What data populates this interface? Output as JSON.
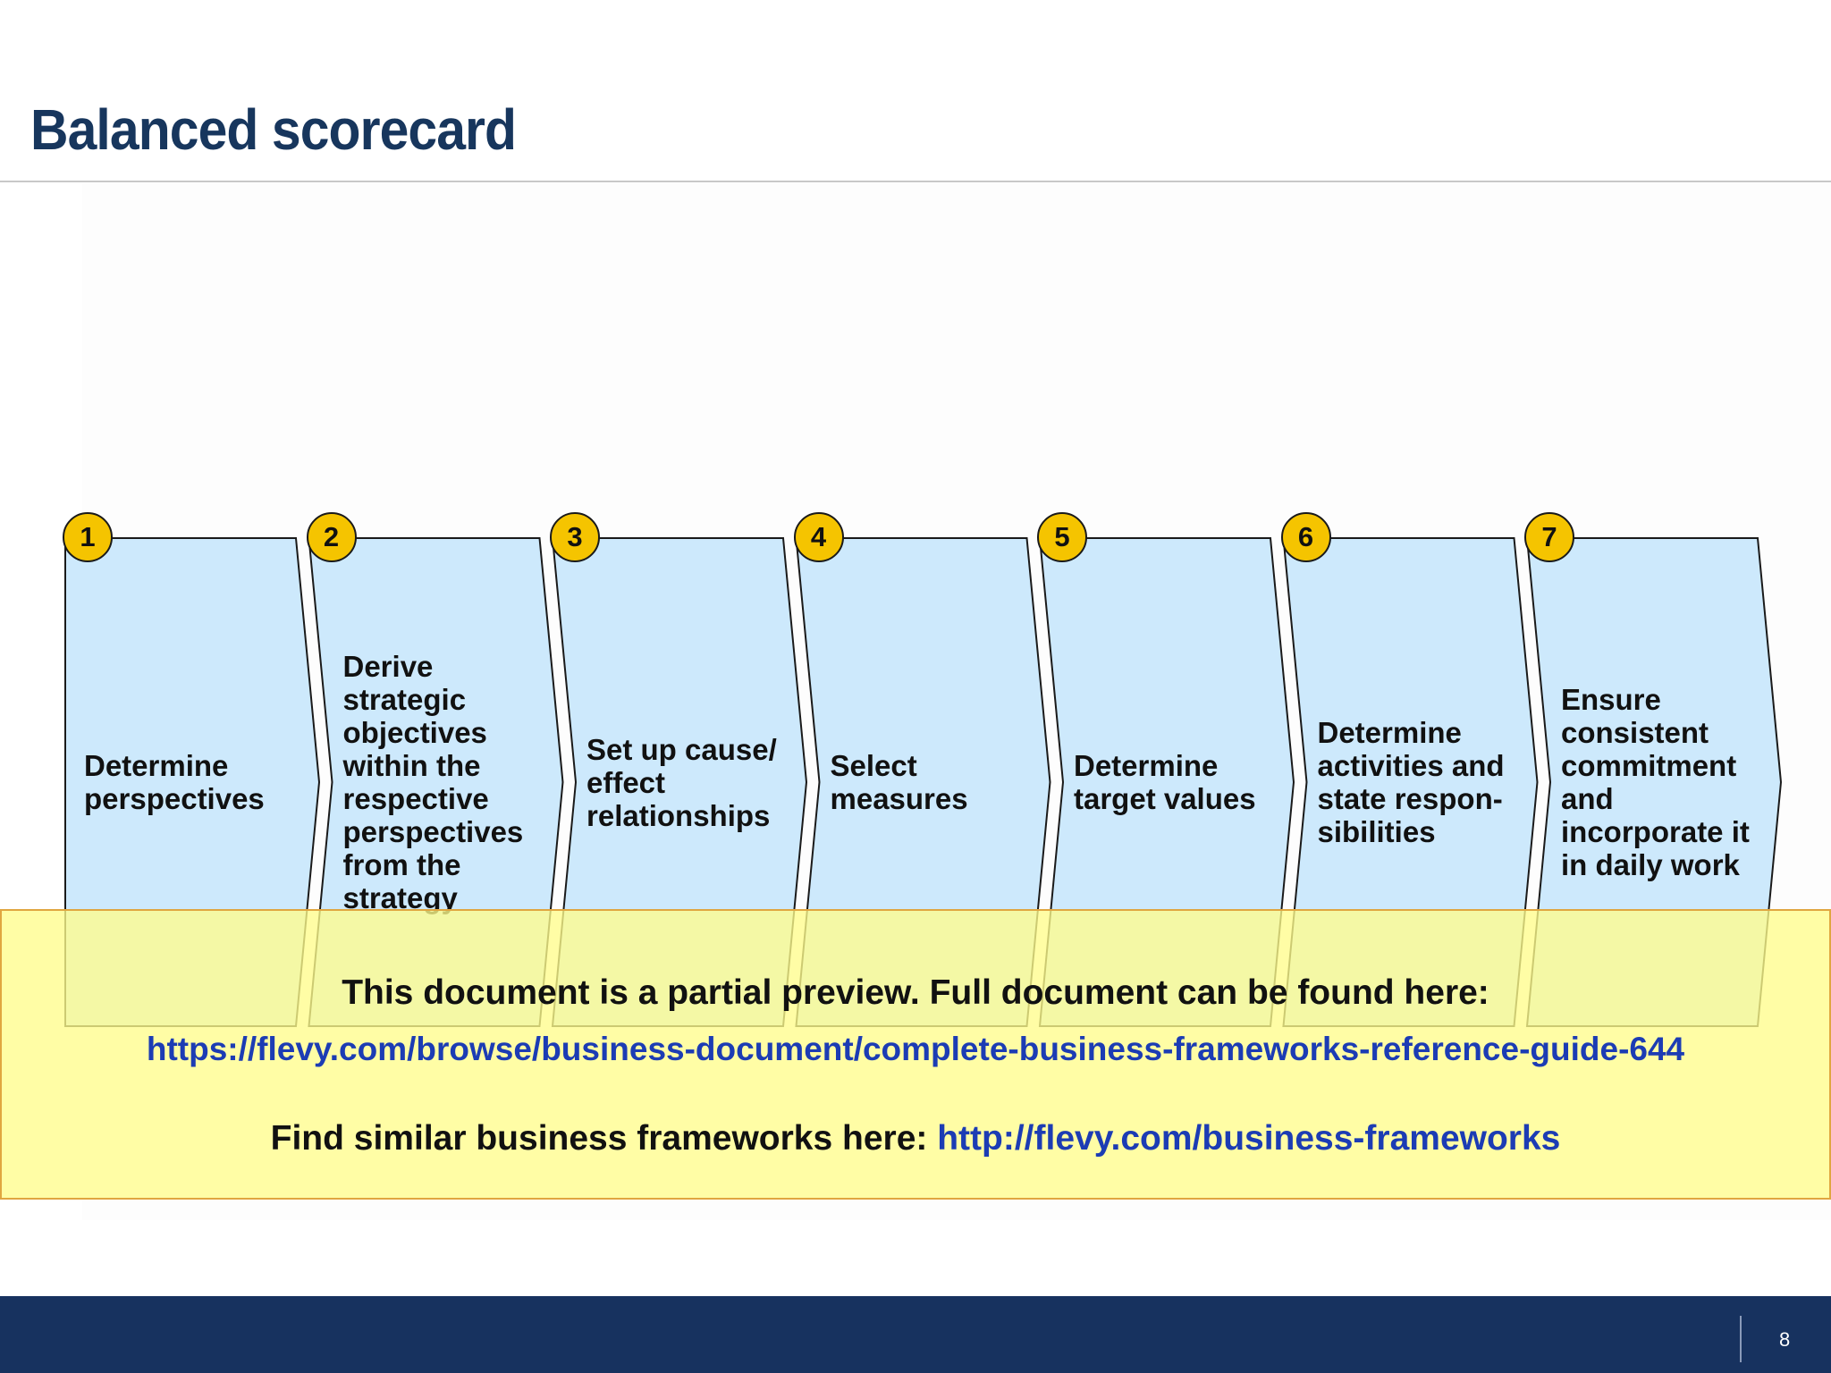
{
  "slide": {
    "title": "Balanced scorecard",
    "page_number": "8"
  },
  "colors": {
    "title": "#17365d",
    "step_fill": "#cde9fc",
    "badge_fill": "#f5c400",
    "banner_fill": "#fffd8c",
    "link": "#1c3cb4",
    "footer": "#17325f"
  },
  "steps": [
    {
      "number": "1",
      "text": "Determine\nperspectives"
    },
    {
      "number": "2",
      "text": "Derive\nstrategic\nobjectives\nwithin the\nrespective\nperspectives\nfrom the\nstrategy"
    },
    {
      "number": "3",
      "text": "Set up cause/\neffect\nrelationships"
    },
    {
      "number": "4",
      "text": "Select\nmeasures"
    },
    {
      "number": "5",
      "text": "Determine\ntarget values"
    },
    {
      "number": "6",
      "text": "Determine\nactivities and\nstate respon-\nsibilities"
    },
    {
      "number": "7",
      "text": "Ensure\nconsistent\ncommitment\nand\nincorporate it\nin daily work"
    }
  ],
  "banner": {
    "line1": "This document is a partial preview.  Full document can be found here:",
    "url1": "https://flevy.com/browse/business-document/complete-business-frameworks-reference-guide-644",
    "line2_prefix": "Find similar business frameworks here: ",
    "line2_link": "http://flevy.com/business-frameworks"
  }
}
